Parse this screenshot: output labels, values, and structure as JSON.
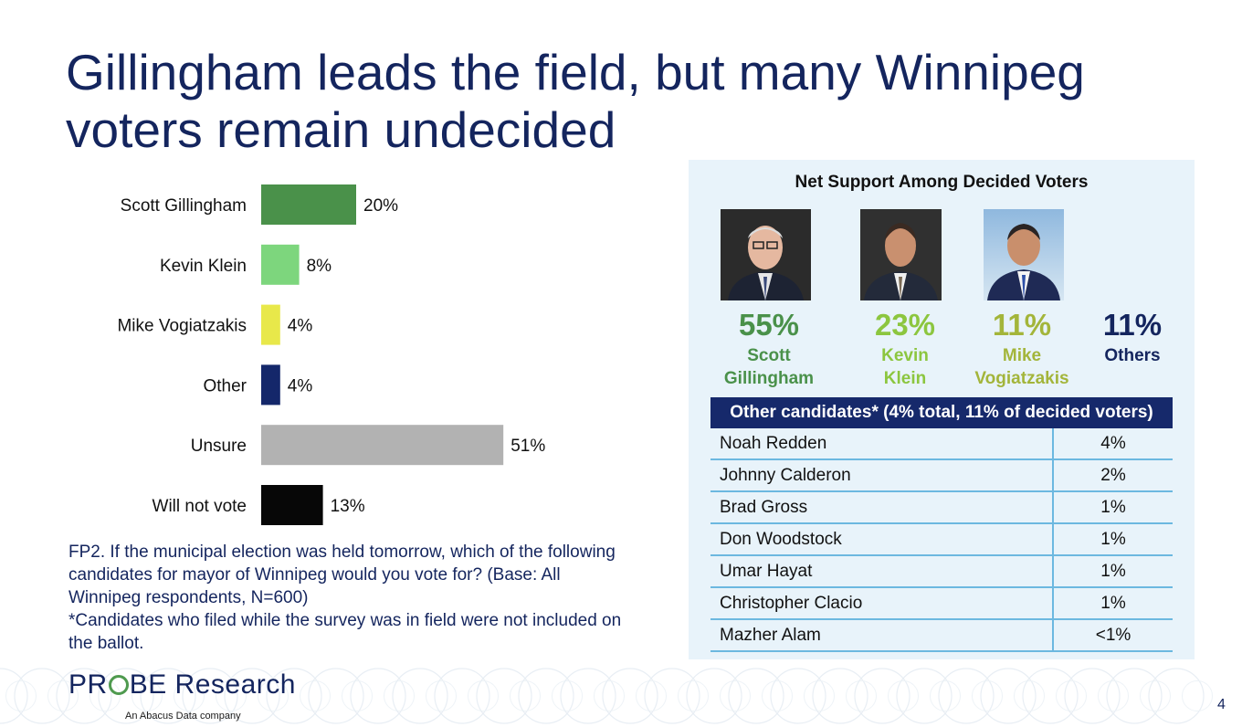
{
  "title": "Gillingham leads the field, but many Winnipeg voters remain undecided",
  "chart_data": {
    "type": "bar",
    "orientation": "horizontal",
    "categories": [
      "Scott Gillingham",
      "Kevin Klein",
      "Mike Vogiatzakis",
      "Other",
      "Unsure",
      "Will not vote"
    ],
    "values": [
      20,
      8,
      4,
      4,
      51,
      13
    ],
    "value_labels": [
      "20%",
      "8%",
      "4%",
      "4%",
      "51%",
      "13%"
    ],
    "colors": [
      "#4a914a",
      "#7dd67d",
      "#e8e84a",
      "#14276a",
      "#b2b2b2",
      "#070707"
    ],
    "xlim": [
      0,
      100
    ],
    "grid": false
  },
  "footnote": [
    "FP2. If the municipal election was held tomorrow, which of the following candidates for mayor of Winnipeg would you vote for? (Base: All Winnipeg respondents, N=600)",
    "*Candidates who filed while the survey was in field were not included on the ballot."
  ],
  "panel": {
    "title": "Net Support Among Decided Voters",
    "candidates": [
      {
        "pct": "55%",
        "name_line1": "Scott",
        "name_line2": "Gillingham",
        "color": "#4a914a"
      },
      {
        "pct": "23%",
        "name_line1": "Kevin",
        "name_line2": "Klein",
        "color": "#8cc63f"
      },
      {
        "pct": "11%",
        "name_line1": "Mike",
        "name_line2": "Vogiatzakis",
        "color": "#a3b53a"
      },
      {
        "pct": "11%",
        "name_line1": "Others",
        "name_line2": "",
        "color": "#14255e"
      }
    ],
    "table_header": "Other candidates* (4% total, 11% of decided voters)",
    "table_rows": [
      {
        "name": "Noah Redden",
        "value": "4%"
      },
      {
        "name": "Johnny Calderon",
        "value": "2%"
      },
      {
        "name": "Brad Gross",
        "value": "1%"
      },
      {
        "name": "Don Woodstock",
        "value": "1%"
      },
      {
        "name": "Umar Hayat",
        "value": "1%"
      },
      {
        "name": "Christopher Clacio",
        "value": "1%"
      },
      {
        "name": "Mazher Alam",
        "value": "<1%"
      }
    ]
  },
  "logo": {
    "pre": "PR",
    "post": "BE Research",
    "tagline": "An Abacus Data company"
  },
  "page_number": "4"
}
